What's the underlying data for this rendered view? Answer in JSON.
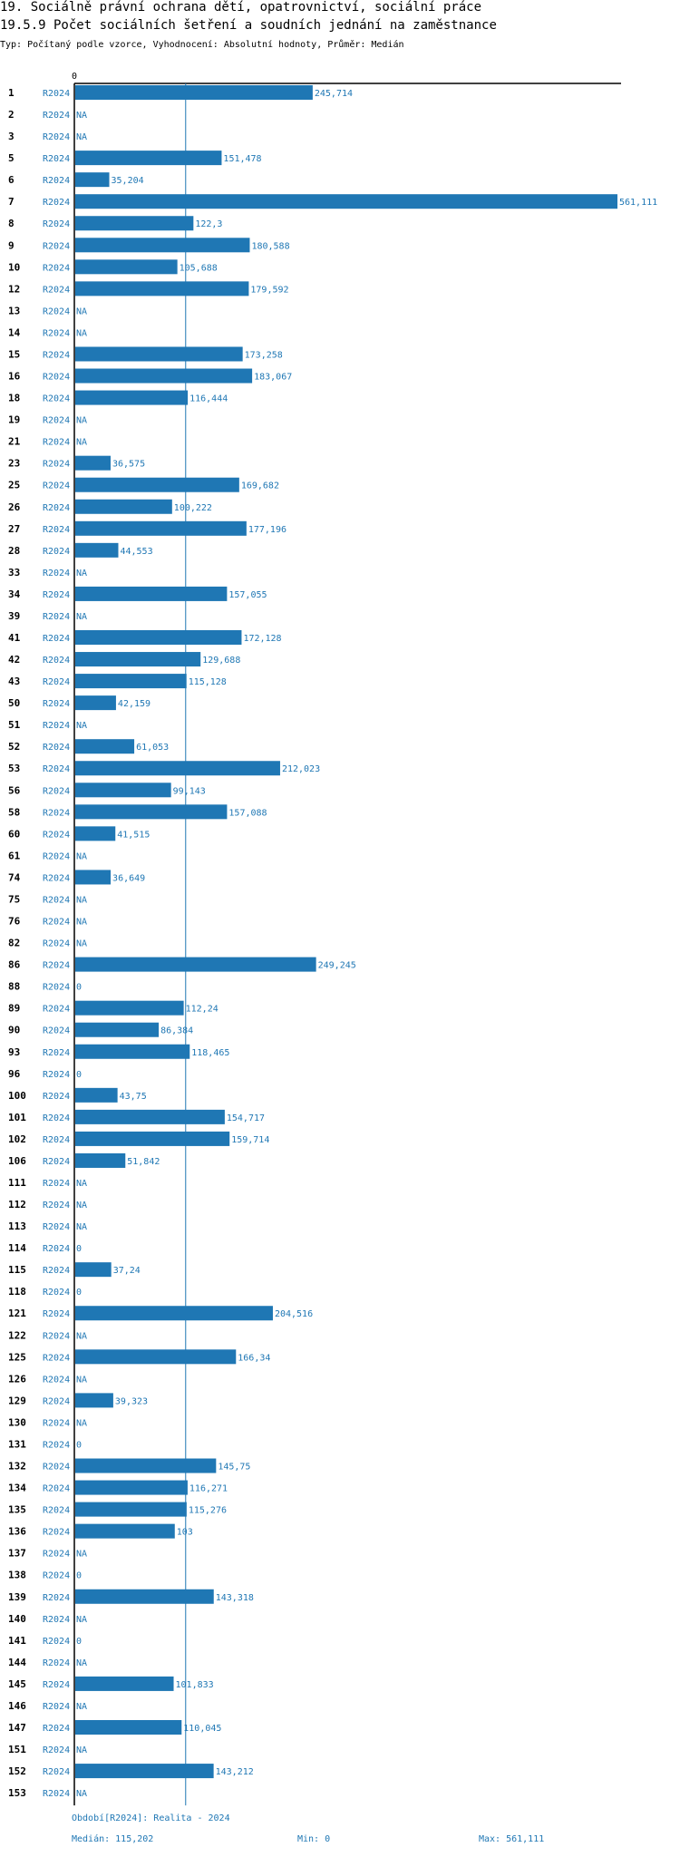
{
  "header": {
    "title_line1": "19. Sociálně právní ochrana dětí, opatrovnictví, sociální práce",
    "title_line2": "19.5.9 Počet sociálních šetření a soudních jednání na zaměstnance",
    "subtitle": "Typ: Počítaný podle vzorce, Vyhodnocení: Absolutní hodnoty, Průměr: Medián"
  },
  "chart_data": {
    "type": "bar",
    "orientation": "horizontal",
    "title": "19.5.9 Počet sociálních šetření a soudních jednání na zaměstnance",
    "series_label": "R2024",
    "axis_zero_label": "0",
    "xlim": [
      0,
      561.111
    ],
    "median": 115.202,
    "categories": [
      "1",
      "2",
      "3",
      "5",
      "6",
      "7",
      "8",
      "9",
      "10",
      "12",
      "13",
      "14",
      "15",
      "16",
      "18",
      "19",
      "21",
      "23",
      "25",
      "26",
      "27",
      "28",
      "33",
      "34",
      "39",
      "41",
      "42",
      "43",
      "50",
      "51",
      "52",
      "53",
      "56",
      "58",
      "60",
      "61",
      "74",
      "75",
      "76",
      "82",
      "86",
      "88",
      "89",
      "90",
      "93",
      "96",
      "100",
      "101",
      "102",
      "106",
      "111",
      "112",
      "113",
      "114",
      "115",
      "118",
      "121",
      "122",
      "125",
      "126",
      "129",
      "130",
      "131",
      "132",
      "134",
      "135",
      "136",
      "137",
      "138",
      "139",
      "140",
      "141",
      "144",
      "145",
      "146",
      "147",
      "151",
      "152",
      "153"
    ],
    "values": [
      245.714,
      null,
      null,
      151.478,
      35.204,
      561.111,
      122.3,
      180.588,
      105.688,
      179.592,
      null,
      null,
      173.258,
      183.067,
      116.444,
      null,
      null,
      36.575,
      169.682,
      100.222,
      177.196,
      44.553,
      null,
      157.055,
      null,
      172.128,
      129.688,
      115.128,
      42.159,
      null,
      61.053,
      212.023,
      99.143,
      157.088,
      41.515,
      null,
      36.649,
      null,
      null,
      null,
      249.245,
      0,
      112.24,
      86.384,
      118.465,
      0,
      43.75,
      154.717,
      159.714,
      51.842,
      null,
      null,
      null,
      0,
      37.24,
      0,
      204.516,
      null,
      166.34,
      null,
      39.323,
      null,
      0,
      145.75,
      116.271,
      115.276,
      103,
      null,
      0,
      143.318,
      null,
      0,
      null,
      101.833,
      null,
      110.045,
      null,
      143.212,
      null
    ],
    "labels": [
      "245,714",
      "NA",
      "NA",
      "151,478",
      "35,204",
      "561,111",
      "122,3",
      "180,588",
      "105,688",
      "179,592",
      "NA",
      "NA",
      "173,258",
      "183,067",
      "116,444",
      "NA",
      "NA",
      "36,575",
      "169,682",
      "100,222",
      "177,196",
      "44,553",
      "NA",
      "157,055",
      "NA",
      "172,128",
      "129,688",
      "115,128",
      "42,159",
      "NA",
      "61,053",
      "212,023",
      "99,143",
      "157,088",
      "41,515",
      "NA",
      "36,649",
      "NA",
      "NA",
      "NA",
      "249,245",
      "0",
      "112,24",
      "86,384",
      "118,465",
      "0",
      "43,75",
      "154,717",
      "159,714",
      "51,842",
      "NA",
      "NA",
      "NA",
      "0",
      "37,24",
      "0",
      "204,516",
      "NA",
      "166,34",
      "NA",
      "39,323",
      "NA",
      "0",
      "145,75",
      "116,271",
      "115,276",
      "103",
      "NA",
      "0",
      "143,318",
      "NA",
      "0",
      "NA",
      "101,833",
      "NA",
      "110,045",
      "NA",
      "143,212",
      "NA"
    ]
  },
  "footer": {
    "period": "Období[R2024]: Realita - 2024",
    "median": "Medián: 115,202",
    "min": "Min: 0",
    "max": "Max: 561,111"
  }
}
